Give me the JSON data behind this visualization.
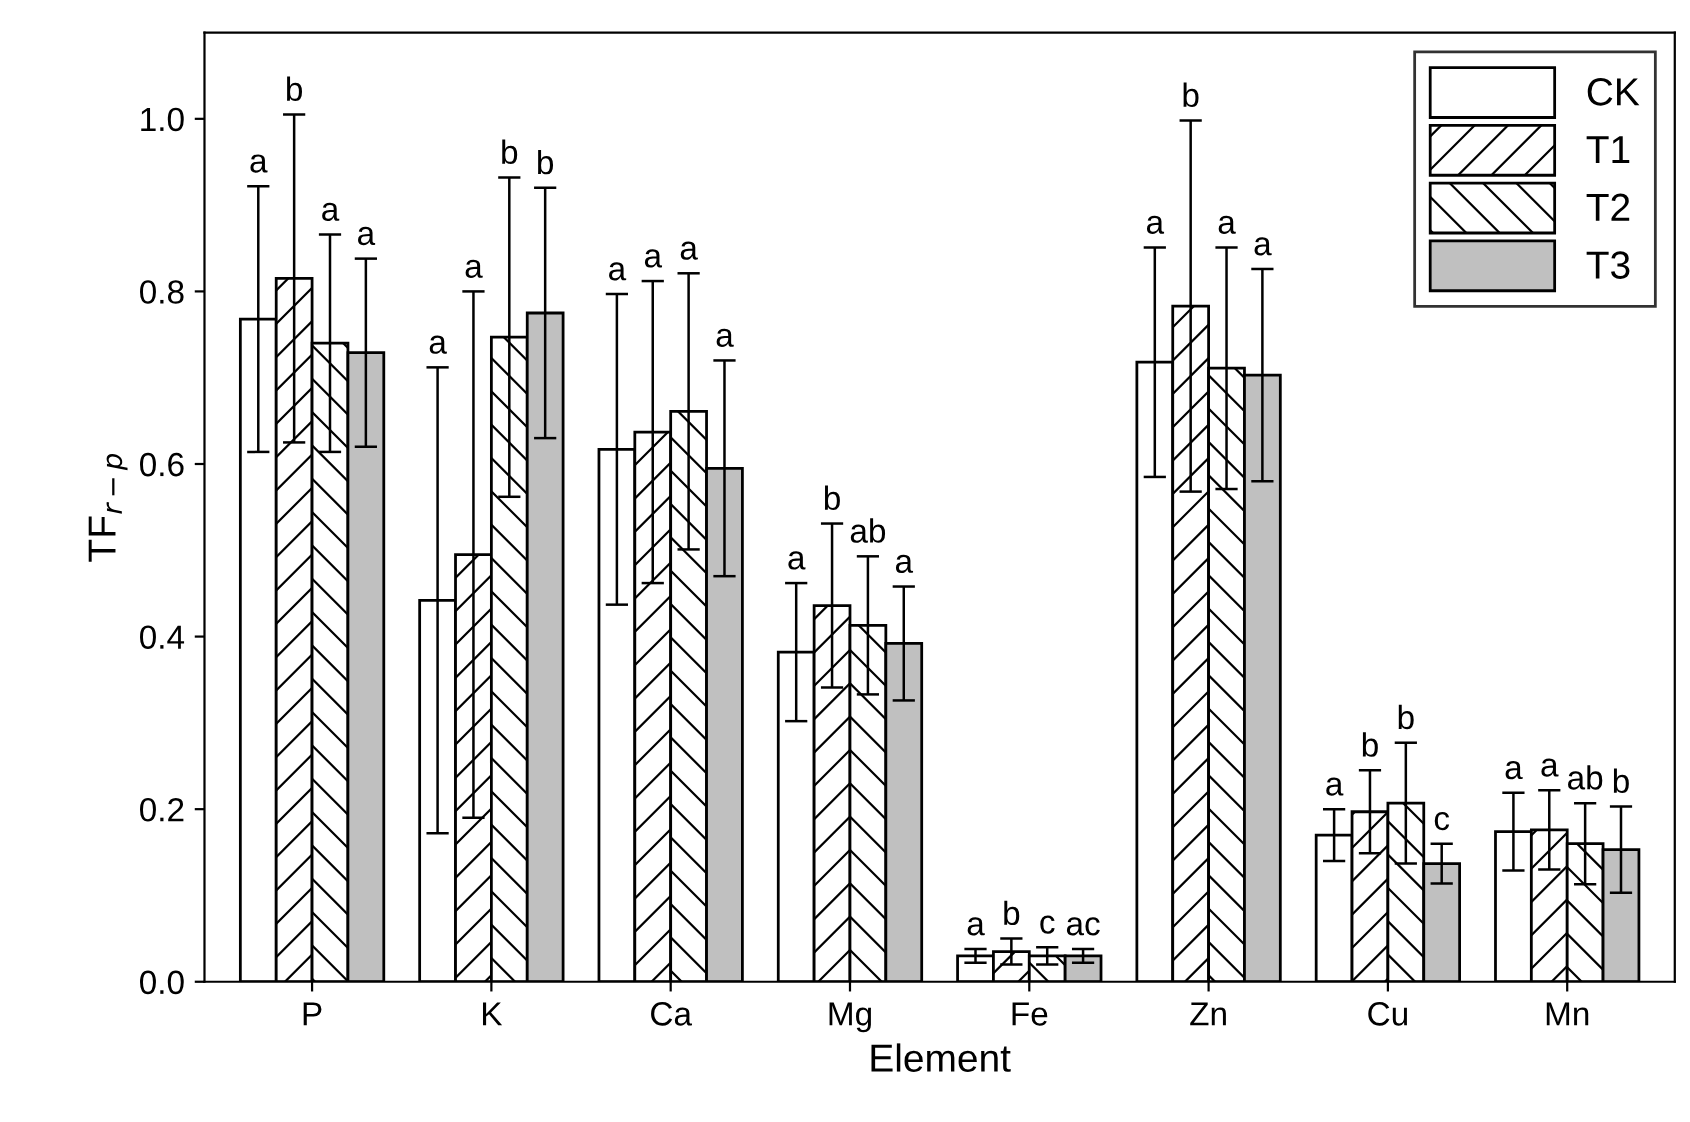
{
  "chart_data": {
    "type": "bar",
    "xlabel": "Element",
    "ylabel": "TF$_{r−p}$",
    "categories": [
      "P",
      "K",
      "Ca",
      "Mg",
      "Fe",
      "Zn",
      "Cu",
      "Mn"
    ],
    "ylim": [
      0,
      1.1
    ],
    "yticks": [
      {
        "value": 0,
        "label": "0.0"
      },
      {
        "value": 0.2,
        "label": "0.2"
      },
      {
        "value": 0.4,
        "label": "0.4"
      },
      {
        "value": 0.6,
        "label": "0.6"
      },
      {
        "value": 0.8,
        "label": "0.8"
      },
      {
        "value": 1.0,
        "label": "1.0"
      }
    ],
    "legend": "top right",
    "annotations": [
      "a",
      "b",
      "a",
      "a",
      "a",
      "a",
      "b",
      "b",
      "a",
      "a",
      "a",
      "a",
      "a",
      "b",
      "ab",
      "a",
      "a",
      "b",
      "c",
      "ac",
      "a",
      "b",
      "a",
      "a",
      "a",
      "b",
      "b",
      "c",
      "a",
      "a",
      "ab",
      "b"
    ],
    "series": [
      {
        "name": "CK",
        "color": "#ffffff",
        "values": [
          0.768,
          0.442,
          0.617,
          0.382,
          0.03,
          0.718,
          0.17,
          0.174
        ],
        "errors": [
          0.154,
          0.27,
          0.18,
          0.08,
          0.008,
          0.133,
          0.03,
          0.045
        ]
      },
      {
        "name": "T1",
        "color": "#ffffff",
        "values": [
          0.815,
          0.495,
          0.637,
          0.436,
          0.035,
          0.783,
          0.197,
          0.176
        ],
        "errors": [
          0.19,
          0.305,
          0.175,
          0.095,
          0.015,
          0.215,
          0.048,
          0.046
        ]
      },
      {
        "name": "T2",
        "color": "#ffffff",
        "values": [
          0.74,
          0.747,
          0.661,
          0.413,
          0.03,
          0.711,
          0.207,
          0.16
        ],
        "errors": [
          0.126,
          0.185,
          0.16,
          0.08,
          0.01,
          0.14,
          0.07,
          0.047
        ]
      },
      {
        "name": "T3",
        "color": "#c0c0c0",
        "values": [
          0.729,
          0.775,
          0.595,
          0.392,
          0.03,
          0.703,
          0.137,
          0.153
        ],
        "errors": [
          0.109,
          0.145,
          0.125,
          0.066,
          0.008,
          0.123,
          0.023,
          0.05
        ]
      }
    ]
  }
}
